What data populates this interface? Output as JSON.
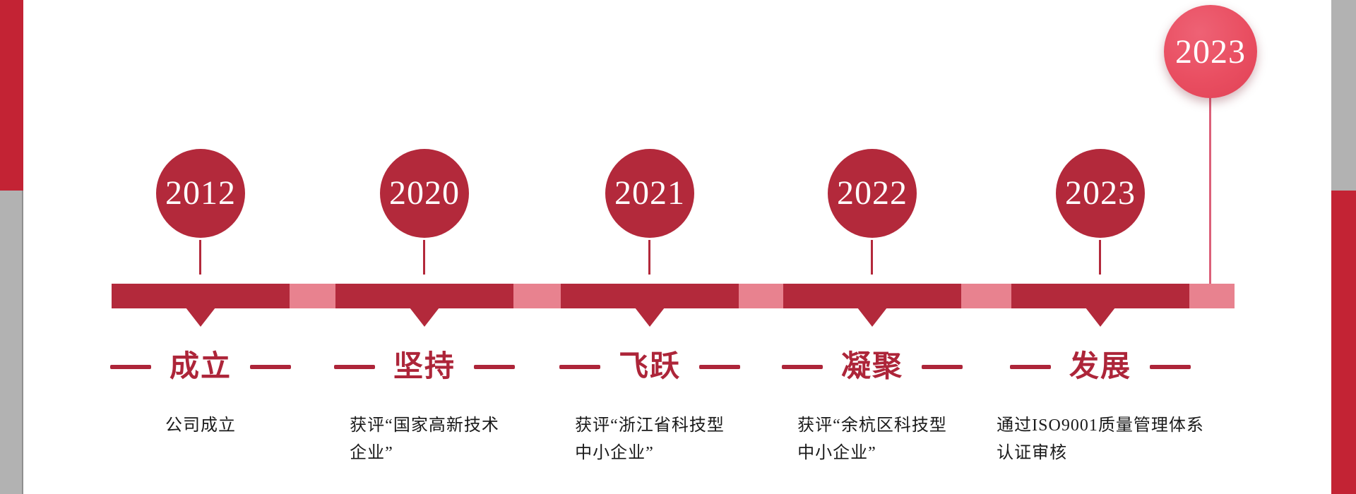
{
  "page": {
    "background": "#ffffff"
  },
  "colors": {
    "dark_red": "#b3293b",
    "pink": "#e8828f",
    "edge_red": "#c32334",
    "edge_gray": "#b2b2b2",
    "label_red": "#ad2539",
    "description_text": "#1a1a1a",
    "year_text": "#ffffff",
    "highlight_circle": "#e94e61",
    "highlight_stem": "#dc6079"
  },
  "timeline": {
    "milestones": [
      {
        "year": "2012",
        "label": "成立",
        "description": "公司成立"
      },
      {
        "year": "2020",
        "label": "坚持",
        "description": "获评“国家高新技术\n企业”"
      },
      {
        "year": "2021",
        "label": "飞跃",
        "description": "获评“浙江省科技型\n中小企业”"
      },
      {
        "year": "2022",
        "label": "凝聚",
        "description": "获评“余杭区科技型\n中小企业”"
      },
      {
        "year": "2023",
        "label": "发展",
        "description": "通过ISO9001质量管理体系\n认证审核"
      }
    ],
    "highlight": {
      "year": "2023"
    }
  }
}
